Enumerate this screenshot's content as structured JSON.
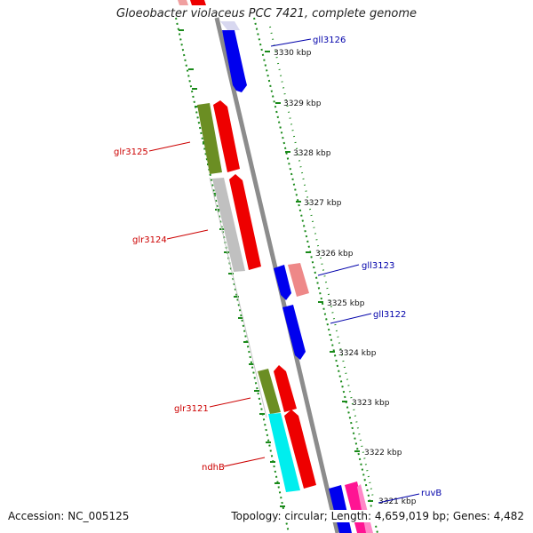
{
  "title": "Gloeobacter violaceus PCC 7421, complete genome",
  "footer": {
    "accession": "Accession: NC_005125",
    "topology": "Topology: circular; Length: 4,659,019 bp; Genes: 4,482"
  },
  "ticks": [
    "3330 kbp",
    "3329 kbp",
    "3328 kbp",
    "3327 kbp",
    "3326 kbp",
    "3325 kbp",
    "3324 kbp",
    "3323 kbp",
    "3322 kbp",
    "3321 kbp"
  ],
  "labels": {
    "gll3126": "gll3126",
    "glr3125": "glr3125",
    "glr3124": "glr3124",
    "gll3123": "gll3123",
    "gll3122": "gll3122",
    "glr3121": "glr3121",
    "ndhB": "ndhB",
    "ruvB": "ruvB"
  },
  "colors": {
    "forward_label": "#cc0000",
    "reverse_label": "#0000aa",
    "backbone": "#8c8c8c",
    "dotted": "#1a8a1a"
  }
}
